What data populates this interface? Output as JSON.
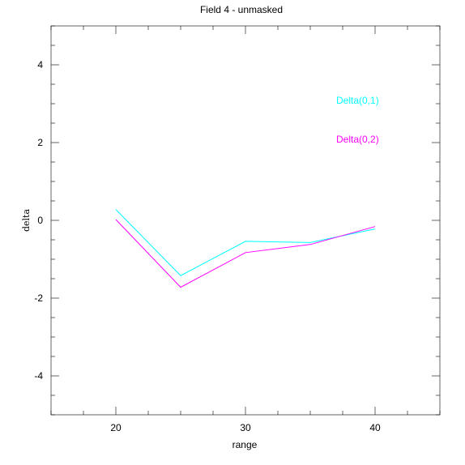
{
  "chart_data": {
    "type": "line",
    "title": "Field 4 - unmasked",
    "xlabel": "range",
    "ylabel": "delta",
    "xlim": [
      15,
      45
    ],
    "ylim": [
      -5,
      5
    ],
    "x_ticks": [
      20,
      30,
      40
    ],
    "y_ticks": [
      -4,
      -2,
      0,
      2,
      4
    ],
    "x_tick_labels": [
      "20",
      "30",
      "40"
    ],
    "y_tick_labels": [
      "-4",
      "-2",
      "0",
      "2",
      "4"
    ],
    "grid": false,
    "legend_position": "upper-right",
    "series": [
      {
        "name": "Delta(0,1)",
        "color": "#00ffff",
        "x": [
          20,
          25,
          30,
          35,
          40
        ],
        "y": [
          0.28,
          -1.42,
          -0.54,
          -0.57,
          -0.22
        ]
      },
      {
        "name": "Delta(0,2)",
        "color": "#ff00ff",
        "x": [
          20,
          25,
          30,
          35,
          40
        ],
        "y": [
          0.02,
          -1.72,
          -0.83,
          -0.62,
          -0.16
        ]
      }
    ]
  }
}
